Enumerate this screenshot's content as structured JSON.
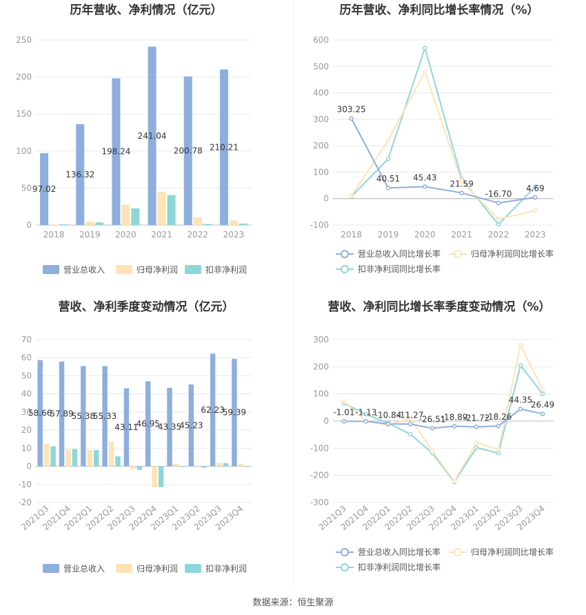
{
  "source": "数据来源：恒生聚源",
  "chart_data": [
    {
      "type": "bar",
      "title": "历年营收、净利情况（亿元）",
      "categories": [
        "2018",
        "2019",
        "2020",
        "2021",
        "2022",
        "2023"
      ],
      "ylim": [
        0,
        250
      ],
      "yticks": [
        0,
        50,
        100,
        150,
        200,
        250
      ],
      "grid": true,
      "legend_position": "bottom",
      "series": [
        {
          "name": "营业总收入",
          "color": "#8eaedd",
          "values": [
            97.02,
            136.32,
            198.24,
            241.04,
            200.78,
            210.21
          ],
          "labels": [
            "97.02",
            "136.32",
            "198.24",
            "241.04",
            "200.78",
            "210.21"
          ]
        },
        {
          "name": "归母净利润",
          "color": "#fde3b5",
          "values": [
            0.8,
            4.8,
            27.5,
            45.0,
            10.5,
            6.0
          ]
        },
        {
          "name": "扣非净利润",
          "color": "#8ed6d8",
          "values": [
            1.0,
            3.5,
            22.5,
            40.5,
            1.5,
            2.0
          ]
        }
      ]
    },
    {
      "type": "line",
      "title": "历年营收、净利同比增长率情况（%）",
      "categories": [
        "2018",
        "2019",
        "2020",
        "2021",
        "2022",
        "2023"
      ],
      "ylim": [
        -100,
        600
      ],
      "yticks": [
        -100,
        0,
        100,
        200,
        300,
        400,
        500,
        600
      ],
      "grid": true,
      "legend_position": "bottom",
      "series": [
        {
          "name": "营业总收入同比增长率",
          "color": "#8eaedd",
          "values": [
            303.25,
            40.51,
            45.43,
            21.59,
            -16.7,
            4.69
          ],
          "labels": [
            "303.25",
            "40.51",
            "45.43",
            "21.59",
            "-16.70",
            "4.69"
          ]
        },
        {
          "name": "归母净利润同比增长率",
          "color": "#fde3b5",
          "values": [
            10,
            220,
            480,
            65,
            -78,
            -45
          ]
        },
        {
          "name": "扣非净利润同比增长率",
          "color": "#8ed6d8",
          "values": [
            8,
            150,
            570,
            75,
            -98,
            45
          ]
        }
      ]
    },
    {
      "type": "bar",
      "title": "营收、净利季度变动情况（亿元）",
      "categories": [
        "2021Q3",
        "2021Q4",
        "2022Q1",
        "2022Q2",
        "2022Q3",
        "2022Q4",
        "2023Q1",
        "2023Q2",
        "2023Q3",
        "2023Q4"
      ],
      "ylim": [
        -20,
        70
      ],
      "yticks": [
        -20,
        -10,
        0,
        10,
        20,
        30,
        40,
        50,
        60,
        70
      ],
      "grid": true,
      "legend_position": "bottom",
      "series": [
        {
          "name": "营业总收入",
          "color": "#8eaedd",
          "values": [
            58.66,
            57.89,
            55.38,
            55.33,
            43.11,
            46.95,
            43.35,
            45.23,
            62.23,
            59.39
          ],
          "labels": [
            "58.66",
            "57.89",
            "55.38",
            "55.33",
            "43.11",
            "46.95",
            "43.35",
            "45.23",
            "62.23",
            "59.39"
          ]
        },
        {
          "name": "归母净利润",
          "color": "#fde3b5",
          "values": [
            12.5,
            9.5,
            9.0,
            13.5,
            -1.5,
            -11.5,
            1.5,
            0.0,
            1.8,
            1.5
          ]
        },
        {
          "name": "扣非净利润",
          "color": "#8ed6d8",
          "values": [
            11.0,
            9.5,
            9.0,
            5.5,
            -2.0,
            -11.5,
            0.0,
            -0.8,
            1.8,
            0.0
          ]
        }
      ]
    },
    {
      "type": "line",
      "title": "营收、净利同比增长率季度变动情况（%）",
      "categories": [
        "2021Q3",
        "2021Q4",
        "2022Q1",
        "2022Q2",
        "2022Q3",
        "2022Q4",
        "2023Q1",
        "2023Q2",
        "2023Q3",
        "2023Q4"
      ],
      "ylim": [
        -300,
        300
      ],
      "yticks": [
        -300,
        -200,
        -100,
        0,
        100,
        200,
        300
      ],
      "grid": true,
      "legend_position": "bottom",
      "series": [
        {
          "name": "营业总收入同比增长率",
          "color": "#8eaedd",
          "values": [
            -1.01,
            -1.13,
            -10.84,
            -11.27,
            -26.51,
            -18.89,
            -21.72,
            -18.26,
            44.35,
            26.49
          ],
          "labels": [
            "-1.01",
            "-1.13",
            "-10.84",
            "-11.27",
            "-26.51",
            "-18.89",
            "-21.72",
            "-18.26",
            "44.35",
            "26.49"
          ]
        },
        {
          "name": "归母净利润同比增长率",
          "color": "#fde3b5",
          "values": [
            72,
            0,
            -15,
            10,
            -110,
            -222,
            -80,
            -105,
            280,
            115
          ]
        },
        {
          "name": "扣非净利润同比增长率",
          "color": "#8ed6d8",
          "values": [
            65,
            25,
            -8,
            -48,
            -118,
            -225,
            -98,
            -118,
            205,
            100
          ]
        }
      ]
    }
  ]
}
